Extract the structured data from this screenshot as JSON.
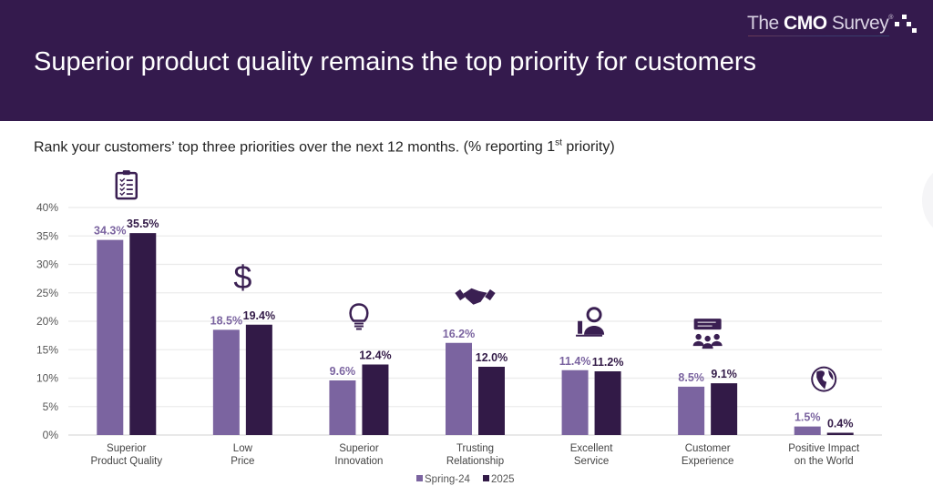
{
  "header": {
    "title": "Superior product quality remains the top priority for customers",
    "logo_prefix": "The ",
    "logo_bold": "CMO",
    "logo_suffix": " Survey",
    "logo_mark": "®"
  },
  "subtitle": {
    "main": "Rank your customers’ top three priorities over the next 12 months. ",
    "note_prefix": "(% reporting 1",
    "note_sup": "st",
    "note_suffix": " priority)"
  },
  "colors": {
    "banner": "#341a4d",
    "spring24": "#7b64a0",
    "y2025": "#321a47",
    "grid": "#ebebeb",
    "icon": "#3a1f52"
  },
  "chart_data": {
    "type": "bar",
    "title": "Rank your customers’ top three priorities over the next 12 months. (% reporting 1st priority)",
    "xlabel": "",
    "ylabel": "",
    "ylim": [
      0,
      40
    ],
    "yticks": [
      "0%",
      "5%",
      "10%",
      "15%",
      "20%",
      "25%",
      "30%",
      "35%",
      "40%"
    ],
    "ytick_values": [
      0,
      5,
      10,
      15,
      20,
      25,
      30,
      35,
      40
    ],
    "grid": true,
    "legend_position": "bottom-center",
    "categories": [
      [
        "Superior",
        "Product Quality"
      ],
      [
        "Low",
        "Price"
      ],
      [
        "Superior",
        "Innovation"
      ],
      [
        "Trusting",
        "Relationship"
      ],
      [
        "Excellent",
        "Service"
      ],
      [
        "Customer",
        "Experience"
      ],
      [
        "Positive Impact",
        "on the World"
      ]
    ],
    "category_icons": [
      "clipboard-checklist-icon",
      "dollar-sign-icon",
      "lightbulb-icon",
      "handshake-icon",
      "service-person-icon",
      "audience-speech-icon",
      "globe-icon"
    ],
    "series": [
      {
        "name": "Spring-24",
        "values": [
          34.3,
          18.5,
          9.6,
          16.2,
          11.4,
          8.5,
          1.5
        ],
        "labels": [
          "34.3%",
          "18.5%",
          "9.6%",
          "16.2%",
          "11.4%",
          "8.5%",
          "1.5%"
        ]
      },
      {
        "name": "2025",
        "values": [
          35.5,
          19.4,
          12.4,
          12.0,
          11.2,
          9.1,
          0.4
        ],
        "labels": [
          "35.5%",
          "19.4%",
          "12.4%",
          "12.0%",
          "11.2%",
          "9.1%",
          "0.4%"
        ]
      }
    ]
  }
}
